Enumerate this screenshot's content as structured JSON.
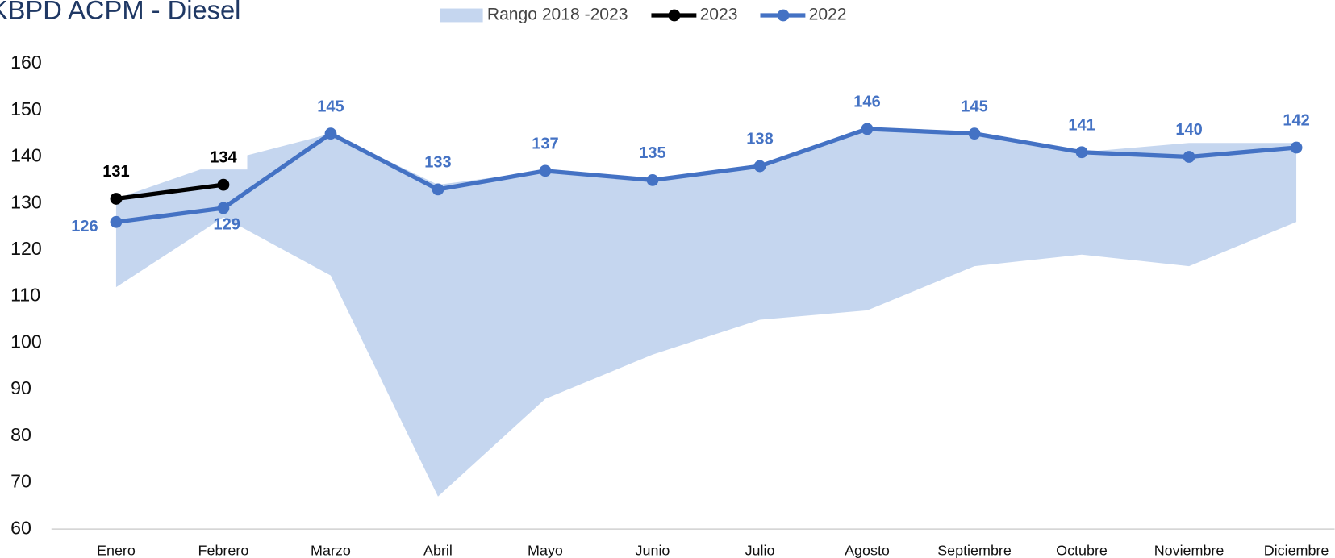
{
  "chart_data": {
    "type": "line",
    "title": "KBPD ACPM - Diesel",
    "categories": [
      "Enero",
      "Febrero",
      "Marzo",
      "Abril",
      "Mayo",
      "Junio",
      "Julio",
      "Agosto",
      "Septiembre",
      "Octubre",
      "Noviembre",
      "Diciembre"
    ],
    "ylim": [
      60,
      160
    ],
    "yticks": [
      60,
      70,
      80,
      90,
      100,
      110,
      120,
      130,
      140,
      150,
      160
    ],
    "grid": false,
    "legend": "top",
    "series": [
      {
        "name": "Rango 2018 -2023",
        "type": "band",
        "color": "#c5d6ef",
        "upper": [
          131,
          139,
          145,
          134,
          137,
          135,
          138,
          146,
          145,
          141,
          143,
          143
        ],
        "lower": [
          112,
          127,
          114.5,
          67,
          88,
          97.5,
          105,
          107,
          116.5,
          119,
          116.5,
          126
        ]
      },
      {
        "name": "2023",
        "color": "#000000",
        "values": [
          131,
          134,
          null,
          null,
          null,
          null,
          null,
          null,
          null,
          null,
          null,
          null
        ]
      },
      {
        "name": "2022",
        "color": "#4472c4",
        "values": [
          126,
          129,
          145,
          133,
          137,
          135,
          138,
          146,
          145,
          141,
          140,
          142
        ]
      }
    ]
  }
}
